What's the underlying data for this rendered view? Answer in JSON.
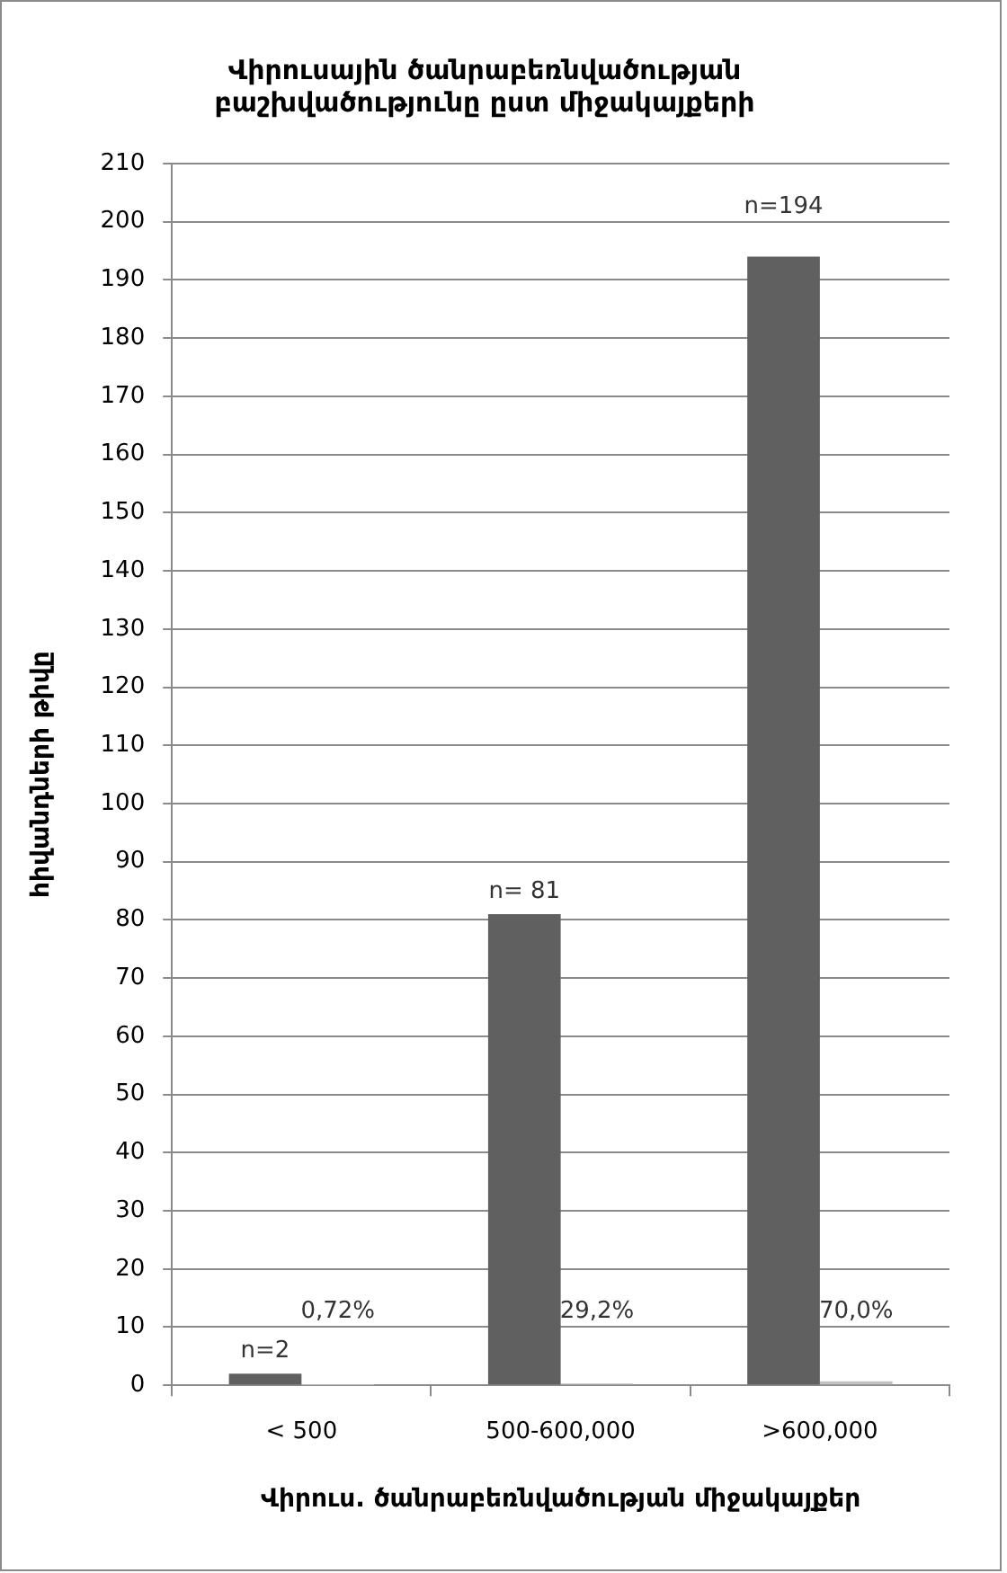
{
  "chart_data": {
    "type": "bar",
    "title": "Վիրուսային ծանրաբեռնվածության բաշխվածությունը ըստ միջակայքերի",
    "xlabel": "Վիրուս. ծանրաբեռնվածության միջակայքեր",
    "ylabel": "հիվանդների թիվը",
    "categories": [
      "< 500",
      "500-600,000",
      ">600,000"
    ],
    "series": [
      {
        "color": "#606060",
        "values": [
          2,
          81,
          194
        ],
        "value_labels": [
          "n=2",
          "n= 81",
          "n=194"
        ]
      },
      {
        "color": "#c0c0c0",
        "values": [
          0.0072,
          0.292,
          0.7
        ],
        "value_labels": [
          "0,72%",
          "29,2%",
          "70,0%"
        ]
      }
    ],
    "ylim": [
      0,
      210
    ],
    "yticks": [
      0,
      10,
      20,
      30,
      40,
      50,
      60,
      70,
      80,
      90,
      100,
      110,
      120,
      130,
      140,
      150,
      160,
      170,
      180,
      190,
      200,
      210
    ],
    "grid": "y"
  }
}
